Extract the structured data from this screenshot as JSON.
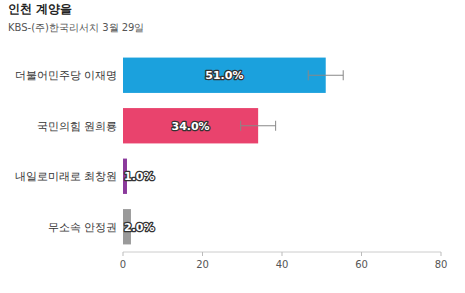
{
  "chart_data": {
    "type": "bar",
    "orientation": "horizontal",
    "title": "인천 계양을",
    "subtitle": "KBS-(주)한국리서치 3월 29일",
    "categories": [
      "더불어민주당 이재명",
      "국민의힘 원희룡",
      "내일로미래로 최창원",
      "무소속 안정권"
    ],
    "values": [
      51.0,
      34.0,
      1.0,
      2.0
    ],
    "value_labels": [
      "51.0%",
      "34.0%",
      "1.0%",
      "2.0%"
    ],
    "errors": [
      4.4,
      4.4,
      null,
      null
    ],
    "colors": [
      "#1ba1dd",
      "#e9436d",
      "#8b3a9c",
      "#9a9a9a"
    ],
    "xlim": [
      0,
      80
    ],
    "xticks": [
      0,
      20,
      40,
      60,
      80
    ],
    "grid": false,
    "data_labels": true
  }
}
